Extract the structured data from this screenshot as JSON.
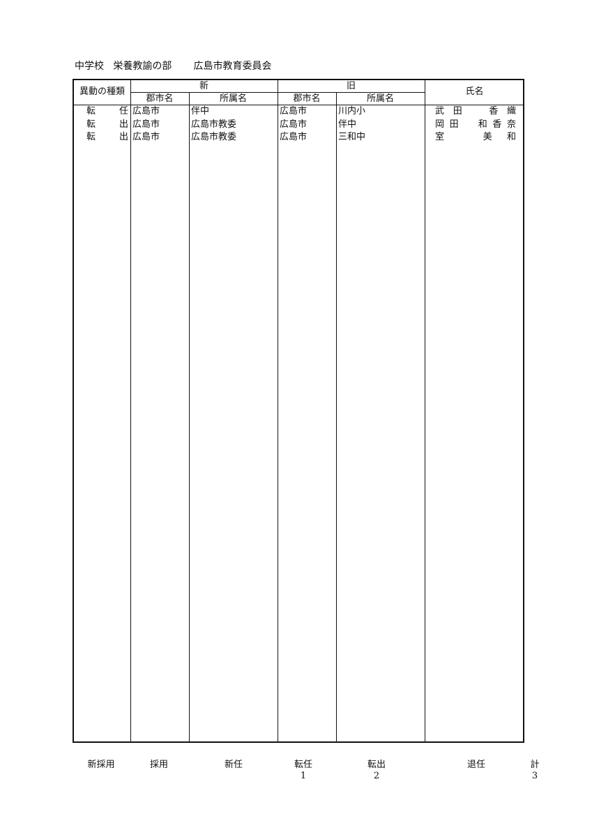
{
  "header": {
    "category": "中学校",
    "section": "栄養教諭の部",
    "organization": "広島市教育委員会"
  },
  "table": {
    "headers": {
      "type": "異動の種類",
      "new": "新",
      "old": "旧",
      "city": "郡市名",
      "affiliation": "所属名",
      "name": "氏名"
    },
    "rows": [
      {
        "type": "転任",
        "new_city": "広島市",
        "new_affiliation": "伴中",
        "old_city": "広島市",
        "old_affiliation": "川内小",
        "name": "武田　香織"
      },
      {
        "type": "転出",
        "new_city": "広島市",
        "new_affiliation": "広島市教委",
        "old_city": "広島市",
        "old_affiliation": "伴中",
        "name": "岡田　和香奈"
      },
      {
        "type": "転出",
        "new_city": "広島市",
        "new_affiliation": "広島市教委",
        "old_city": "広島市",
        "old_affiliation": "三和中",
        "name": "室　美和"
      }
    ]
  },
  "summary": {
    "labels": [
      "新採用",
      "採用",
      "新任",
      "転任",
      "転出",
      "退任",
      "計"
    ],
    "counts": [
      "",
      "",
      "",
      "1",
      "2",
      "",
      "3"
    ]
  }
}
